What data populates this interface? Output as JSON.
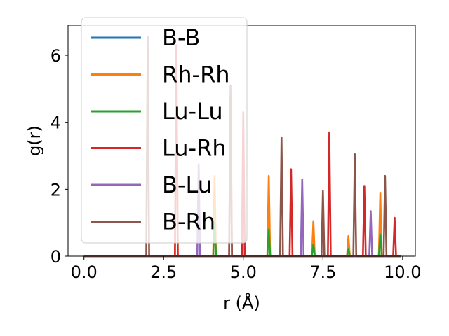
{
  "chart_data": {
    "type": "line",
    "xlabel": "r (Å)",
    "ylabel": "g(r)",
    "xlim": [
      -0.5,
      10.4
    ],
    "ylim": [
      0,
      6.9
    ],
    "xticks": [
      0.0,
      2.5,
      5.0,
      7.5,
      10.0
    ],
    "xtick_labels": [
      "0.0",
      "2.5",
      "5.0",
      "7.5",
      "10.0"
    ],
    "yticks": [
      0,
      2,
      4,
      6
    ],
    "ytick_labels": [
      "0",
      "2",
      "4",
      "6"
    ],
    "grid": false,
    "legend_position": "top-left",
    "series": [
      {
        "name": "B-B",
        "color": "#1f77b4",
        "peaks": []
      },
      {
        "name": "Rh-Rh",
        "color": "#ff7f0e",
        "peaks": [
          [
            2.9,
            6.1
          ],
          [
            4.1,
            2.4
          ],
          [
            5.8,
            2.4
          ],
          [
            7.2,
            1.05
          ],
          [
            8.3,
            0.6
          ],
          [
            9.3,
            1.9
          ]
        ]
      },
      {
        "name": "Lu-Lu",
        "color": "#2ca02c",
        "peaks": [
          [
            4.1,
            1.0
          ],
          [
            5.8,
            0.8
          ],
          [
            7.2,
            0.35
          ],
          [
            8.3,
            0.2
          ],
          [
            9.3,
            0.65
          ]
        ]
      },
      {
        "name": "Lu-Rh",
        "color": "#d62728",
        "peaks": [
          [
            2.9,
            6.3
          ],
          [
            4.6,
            4.8
          ],
          [
            5.0,
            4.3
          ],
          [
            6.5,
            2.6
          ],
          [
            7.7,
            3.7
          ],
          [
            8.8,
            2.1
          ],
          [
            9.75,
            1.15
          ]
        ]
      },
      {
        "name": "B-Lu",
        "color": "#9467bd",
        "peaks": [
          [
            3.6,
            2.75
          ],
          [
            6.85,
            2.3
          ],
          [
            9.0,
            1.35
          ]
        ]
      },
      {
        "name": "B-Rh",
        "color": "#8c564b",
        "peaks": [
          [
            2.0,
            6.55
          ],
          [
            4.6,
            5.1
          ],
          [
            6.2,
            3.55
          ],
          [
            7.5,
            1.95
          ],
          [
            8.5,
            3.05
          ],
          [
            9.45,
            2.4
          ]
        ]
      }
    ]
  }
}
